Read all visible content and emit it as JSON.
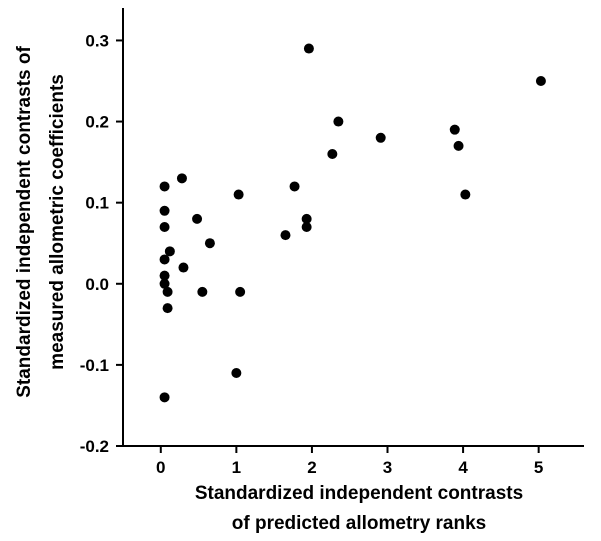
{
  "chart_data": {
    "type": "scatter",
    "title": "",
    "xlabel": [
      "Standardized independent contrasts",
      "of predicted allometry ranks"
    ],
    "ylabel": [
      "Standardized independent contrasts of",
      "measured allometric coefficients"
    ],
    "xlim": [
      -0.5,
      5.6
    ],
    "ylim": [
      -0.2,
      0.34
    ],
    "xticks": [
      0,
      1,
      2,
      3,
      4,
      5
    ],
    "yticks": [
      -0.2,
      -0.1,
      0.0,
      0.1,
      0.2,
      0.3
    ],
    "xtick_labels": [
      "0",
      "1",
      "2",
      "3",
      "4",
      "5"
    ],
    "ytick_labels": [
      "-0.2",
      "-0.1",
      "0.0",
      "0.1",
      "0.2",
      "0.3"
    ],
    "grid": false,
    "legend": "none",
    "points": [
      {
        "x": 0.05,
        "y": 0.12
      },
      {
        "x": 0.05,
        "y": 0.09
      },
      {
        "x": 0.05,
        "y": 0.07
      },
      {
        "x": 0.05,
        "y": 0.03
      },
      {
        "x": 0.05,
        "y": 0.01
      },
      {
        "x": 0.05,
        "y": 0.0
      },
      {
        "x": 0.05,
        "y": -0.14
      },
      {
        "x": 0.09,
        "y": -0.01
      },
      {
        "x": 0.09,
        "y": -0.03
      },
      {
        "x": 0.12,
        "y": 0.04
      },
      {
        "x": 0.28,
        "y": 0.13
      },
      {
        "x": 0.3,
        "y": 0.02
      },
      {
        "x": 0.48,
        "y": 0.08
      },
      {
        "x": 0.55,
        "y": -0.01
      },
      {
        "x": 0.65,
        "y": 0.05
      },
      {
        "x": 1.0,
        "y": -0.11
      },
      {
        "x": 1.03,
        "y": 0.11
      },
      {
        "x": 1.05,
        "y": -0.01
      },
      {
        "x": 1.65,
        "y": 0.06
      },
      {
        "x": 1.77,
        "y": 0.12
      },
      {
        "x": 1.93,
        "y": 0.08
      },
      {
        "x": 1.93,
        "y": 0.07
      },
      {
        "x": 1.96,
        "y": 0.29
      },
      {
        "x": 2.27,
        "y": 0.16
      },
      {
        "x": 2.35,
        "y": 0.2
      },
      {
        "x": 2.91,
        "y": 0.18
      },
      {
        "x": 3.89,
        "y": 0.19
      },
      {
        "x": 3.94,
        "y": 0.17
      },
      {
        "x": 4.03,
        "y": 0.11
      },
      {
        "x": 5.03,
        "y": 0.25
      }
    ]
  }
}
